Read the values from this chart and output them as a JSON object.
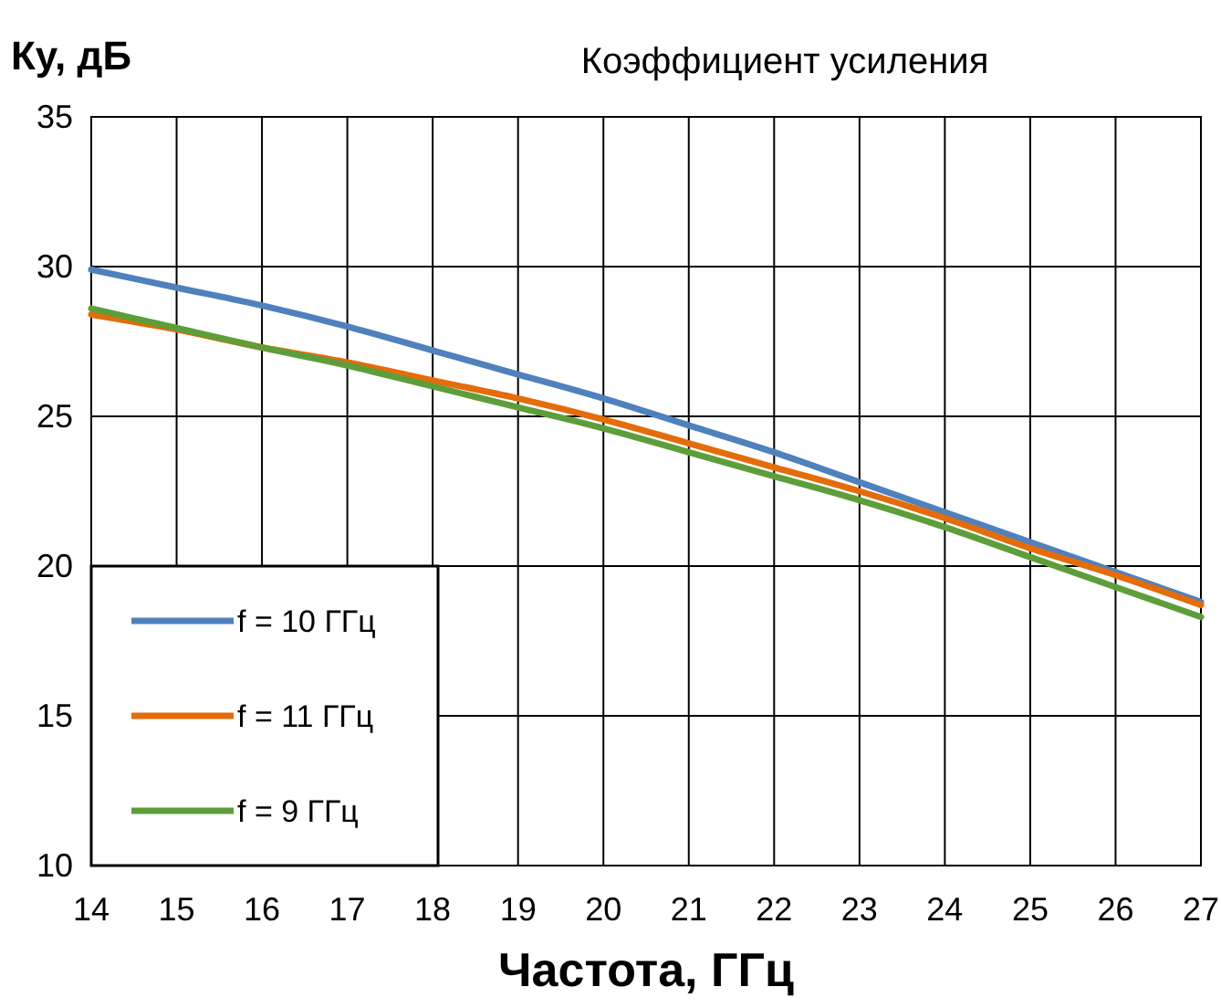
{
  "chart_data": {
    "type": "line",
    "title": "Коэффициент усиления",
    "xlabel": "Частота, ГГц",
    "ylabel": "Ку, дБ",
    "x": [
      14,
      15,
      16,
      17,
      18,
      19,
      20,
      21,
      22,
      23,
      24,
      25,
      26,
      27
    ],
    "xlim": [
      14,
      27
    ],
    "xticks": [
      14,
      15,
      16,
      17,
      18,
      19,
      20,
      21,
      22,
      23,
      24,
      25,
      26,
      27
    ],
    "ylim": [
      10,
      35
    ],
    "yticks": [
      10,
      15,
      20,
      25,
      30,
      35
    ],
    "grid": true,
    "legend": "bottom left",
    "marker": "none",
    "line_style": "solid",
    "series": [
      {
        "name": "f = 10 ГГц",
        "color": "#4f81bd",
        "values": [
          29.9,
          29.3,
          28.7,
          28.0,
          27.2,
          26.4,
          25.6,
          24.7,
          23.8,
          22.8,
          21.8,
          20.8,
          19.8,
          18.8
        ]
      },
      {
        "name": "f = 11 ГГц",
        "color": "#e46c0a",
        "values": [
          28.4,
          27.9,
          27.3,
          26.8,
          26.2,
          25.6,
          24.9,
          24.1,
          23.3,
          22.5,
          21.6,
          20.6,
          19.7,
          18.7
        ]
      },
      {
        "name": "f = 9 ГГц",
        "color": "#5e9e3a",
        "values": [
          28.6,
          27.95,
          27.3,
          26.7,
          26.0,
          25.3,
          24.6,
          23.8,
          23.0,
          22.2,
          21.3,
          20.3,
          19.3,
          18.3
        ]
      }
    ]
  }
}
